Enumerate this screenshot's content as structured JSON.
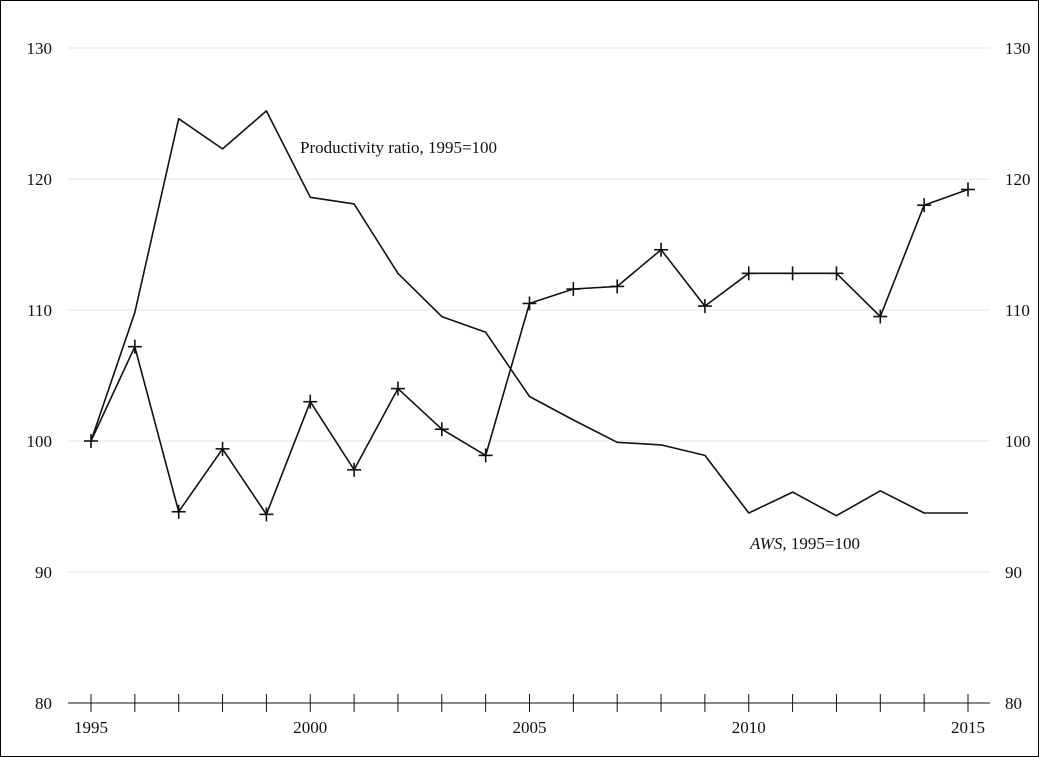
{
  "chart_data": {
    "type": "line",
    "x": [
      1995,
      1996,
      1997,
      1998,
      1999,
      2000,
      2001,
      2002,
      2003,
      2004,
      2005,
      2006,
      2007,
      2008,
      2009,
      2010,
      2011,
      2012,
      2013,
      2014,
      2015
    ],
    "series": [
      {
        "name": "Productivity ratio, 1995=100",
        "values": [
          100,
          109.8,
          124.6,
          122.3,
          125.2,
          118.6,
          118.1,
          112.8,
          109.5,
          108.3,
          103.4,
          101.6,
          99.9,
          99.7,
          98.9,
          94.5,
          96.1,
          94.3,
          96.2,
          94.5,
          94.5
        ],
        "marker": "none"
      },
      {
        "name": "AWS, 1995=100",
        "values": [
          100,
          107.2,
          94.6,
          99.4,
          94.4,
          103.0,
          97.8,
          104.0,
          100.9,
          98.9,
          110.5,
          111.6,
          111.8,
          114.6,
          110.3,
          112.8,
          112.8,
          112.8,
          109.5,
          118.0,
          119.2
        ],
        "marker": "plus"
      }
    ],
    "xlim": [
      1995,
      2015
    ],
    "ylim": [
      80,
      130
    ],
    "xticks_labeled": [
      1995,
      2000,
      2005,
      2010,
      2015
    ],
    "yticks": [
      80,
      90,
      100,
      110,
      120,
      130
    ],
    "xlabel": "",
    "ylabel": "",
    "grid": "horizontal",
    "annotations": {
      "productivity": "Productivity ratio, 1995=100",
      "aws_italic": "AWS",
      "aws_rest": ", 1995=100"
    },
    "colors": {
      "line": "#111111",
      "grid": "#e4e4e4",
      "frame": "#000000"
    }
  }
}
